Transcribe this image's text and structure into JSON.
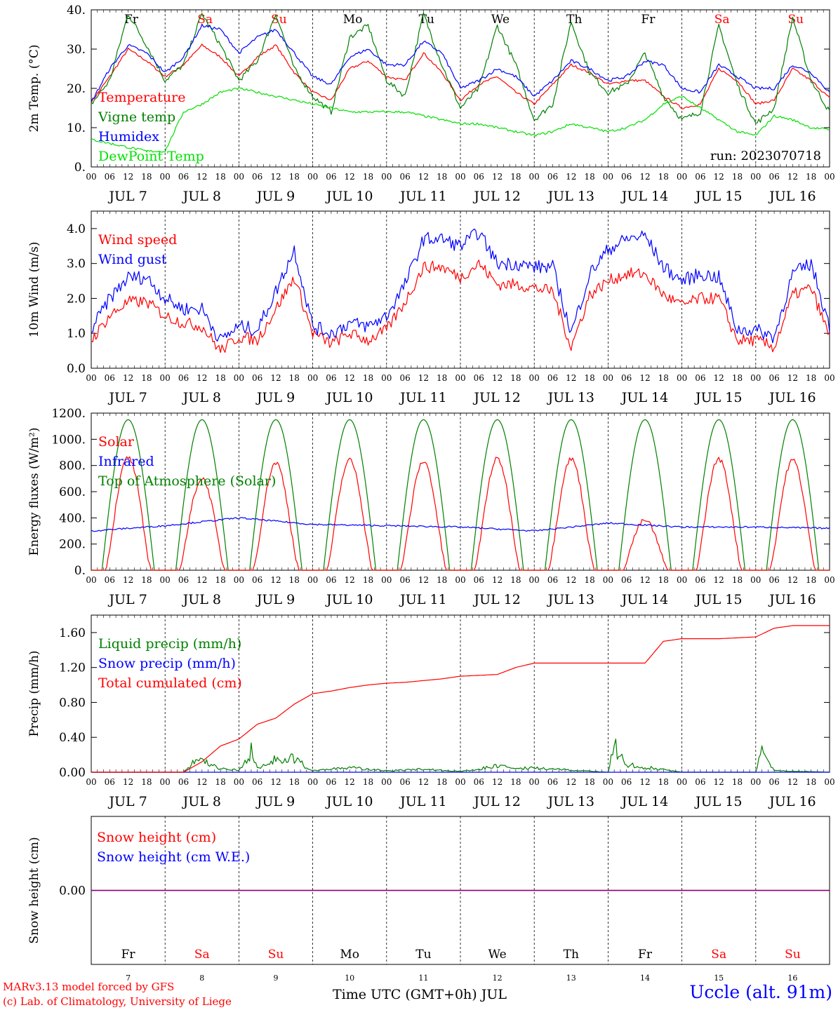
{
  "colors": {
    "red": "#ff0000",
    "blue": "#0000ff",
    "green": "#008000",
    "lightgreen": "#00e000",
    "purple": "#800080"
  },
  "days": {
    "names": [
      "Fr",
      "Sa",
      "Su",
      "Mo",
      "Tu",
      "We",
      "Th",
      "Fr",
      "Sa",
      "Su"
    ],
    "weekend": [
      false,
      true,
      true,
      false,
      false,
      false,
      false,
      false,
      true,
      true
    ],
    "dates": [
      "JUL  7",
      "JUL  8",
      "JUL  9",
      "JUL 10",
      "JUL 11",
      "JUL 12",
      "JUL 13",
      "JUL 14",
      "JUL 15",
      "JUL 16"
    ],
    "numbers": [
      "7",
      "8",
      "9",
      "10",
      "11",
      "12",
      "13",
      "14",
      "15",
      "16"
    ],
    "hours": [
      "00",
      "06",
      "12",
      "18"
    ],
    "final_hour": "00"
  },
  "footer": {
    "model": "MARv3.13 model forced by GFS",
    "lab": "(c) Lab. of Climatology, University of Liege",
    "station": "Uccle (alt. 91m)",
    "time_axis": "Time UTC (GMT+0h) JUL"
  },
  "chart_data": [
    {
      "type": "line",
      "ylabel": "2m Temp. (°C)",
      "ylim": [
        0,
        40
      ],
      "yticks": [
        "0.",
        "10.",
        "20.",
        "30.",
        "40."
      ],
      "run_label": "run: 2023070718",
      "x_unit": "hours since Jul 7 00 UTC",
      "series": [
        {
          "name": "Temperature",
          "color": "red",
          "x": [
            0,
            6,
            12,
            18,
            24,
            30,
            36,
            42,
            48,
            54,
            60,
            66,
            72,
            78,
            84,
            90,
            96,
            102,
            108,
            114,
            120,
            126,
            132,
            138,
            144,
            150,
            156,
            162,
            168,
            174,
            180,
            186,
            192,
            198,
            204,
            210,
            216,
            222,
            228,
            234,
            240
          ],
          "y": [
            16.5,
            23,
            30,
            27,
            23,
            26,
            31,
            28,
            23,
            28,
            31,
            24,
            19,
            17,
            25,
            27,
            23,
            22,
            29,
            24,
            17,
            21,
            23,
            19,
            16,
            21,
            26,
            24,
            21,
            22,
            22,
            18,
            15,
            16,
            25,
            22,
            16,
            17,
            25,
            22,
            17.5
          ]
        },
        {
          "name": "Vigne temp",
          "color": "green",
          "x": [
            0,
            6,
            12,
            18,
            24,
            30,
            36,
            42,
            48,
            54,
            60,
            66,
            72,
            78,
            84,
            90,
            96,
            102,
            108,
            114,
            120,
            126,
            132,
            138,
            144,
            150,
            156,
            162,
            168,
            174,
            180,
            186,
            192,
            198,
            204,
            210,
            216,
            222,
            228,
            234,
            240
          ],
          "y": [
            16,
            22,
            39,
            31,
            22,
            26,
            39,
            31,
            22,
            27,
            39,
            25,
            18,
            14,
            33,
            36,
            22,
            18,
            39,
            26,
            15,
            20,
            36,
            26,
            12,
            16,
            37,
            24,
            19,
            21,
            29,
            18,
            12,
            14,
            36,
            21,
            11,
            15,
            38,
            22,
            14
          ]
        },
        {
          "name": "Humidex",
          "color": "blue",
          "x": [
            0,
            6,
            12,
            18,
            24,
            30,
            36,
            42,
            48,
            54,
            60,
            66,
            72,
            78,
            84,
            90,
            96,
            102,
            108,
            114,
            120,
            126,
            132,
            138,
            144,
            150,
            156,
            162,
            168,
            174,
            180,
            186,
            192,
            198,
            204,
            210,
            216,
            222,
            228,
            234,
            240
          ],
          "y": [
            16.5,
            25,
            31,
            29,
            24,
            28,
            36,
            35,
            29,
            33,
            35,
            29,
            23,
            21,
            28,
            30,
            26,
            26,
            32,
            29,
            20,
            22,
            25,
            23,
            18,
            22,
            27,
            25,
            22,
            23,
            27,
            26,
            20,
            19,
            26,
            23,
            20,
            20,
            26,
            24,
            19
          ]
        },
        {
          "name": "DewPoint Temp",
          "color": "lightgreen",
          "x": [
            0,
            6,
            12,
            18,
            24,
            30,
            36,
            42,
            48,
            54,
            60,
            66,
            72,
            78,
            84,
            90,
            96,
            102,
            108,
            114,
            120,
            126,
            132,
            138,
            144,
            150,
            156,
            162,
            168,
            174,
            180,
            186,
            192,
            198,
            204,
            210,
            216,
            222,
            228,
            234,
            240
          ],
          "y": [
            7,
            6,
            5,
            4,
            4,
            14,
            16,
            19,
            20,
            19,
            18,
            17,
            16,
            15,
            14,
            14,
            14,
            14,
            13,
            12,
            11,
            11,
            10,
            9,
            8,
            9,
            11,
            10,
            9,
            10,
            12,
            16,
            18,
            15,
            12,
            9,
            8,
            13,
            12,
            10,
            9.5
          ]
        }
      ]
    },
    {
      "type": "line",
      "ylabel": "10m Wind (m/s)",
      "ylim": [
        0,
        4.5
      ],
      "yticks": [
        "0.0",
        "1.0",
        "2.0",
        "3.0",
        "4.0"
      ],
      "x_unit": "hours since Jul 7 00 UTC",
      "series": [
        {
          "name": "Wind speed",
          "color": "red",
          "x": [
            0,
            6,
            12,
            18,
            24,
            30,
            36,
            42,
            48,
            54,
            60,
            66,
            72,
            78,
            84,
            90,
            96,
            102,
            108,
            114,
            120,
            126,
            132,
            138,
            144,
            150,
            156,
            162,
            168,
            174,
            180,
            186,
            192,
            198,
            204,
            210,
            216,
            222,
            228,
            234,
            240
          ],
          "y": [
            0.8,
            1.5,
            1.9,
            1.9,
            1.5,
            1.3,
            1.2,
            0.5,
            0.9,
            0.8,
            1.7,
            2.6,
            1.0,
            0.7,
            1.0,
            0.8,
            1.1,
            1.9,
            2.9,
            2.9,
            2.6,
            3.0,
            2.4,
            2.4,
            2.3,
            2.2,
            0.6,
            2.1,
            2.5,
            2.7,
            2.7,
            2.1,
            1.8,
            2.0,
            2.0,
            0.8,
            0.8,
            0.6,
            2.1,
            2.3,
            0.9
          ]
        },
        {
          "name": "Wind gust",
          "color": "blue",
          "x": [
            0,
            6,
            12,
            18,
            24,
            30,
            36,
            42,
            48,
            54,
            60,
            66,
            72,
            78,
            84,
            90,
            96,
            102,
            108,
            114,
            120,
            126,
            132,
            138,
            144,
            150,
            156,
            162,
            168,
            174,
            180,
            186,
            192,
            198,
            204,
            210,
            216,
            222,
            228,
            234,
            240
          ],
          "y": [
            1.1,
            2.0,
            2.6,
            2.6,
            2.0,
            1.7,
            1.7,
            0.8,
            1.2,
            1.1,
            2.2,
            3.4,
            1.2,
            1.0,
            1.3,
            1.2,
            1.5,
            2.4,
            3.7,
            3.7,
            3.5,
            3.9,
            3.0,
            3.0,
            2.9,
            2.9,
            1.0,
            2.7,
            3.4,
            3.7,
            3.8,
            2.9,
            2.5,
            2.7,
            2.6,
            1.1,
            1.1,
            0.9,
            2.7,
            3.0,
            1.2
          ]
        }
      ]
    },
    {
      "type": "line",
      "ylabel": "Energy fluxes (W/m²)",
      "ylim": [
        0,
        1200
      ],
      "yticks": [
        "0.",
        "200.",
        "400.",
        "600.",
        "800.",
        "1000.",
        "1200."
      ],
      "x_unit": "hours since Jul 7 00 UTC",
      "solar_peaks": [
        860,
        700,
        820,
        840,
        830,
        850,
        850,
        380,
        850,
        840
      ],
      "toa_peak": 1150,
      "series": [
        {
          "name": "Solar",
          "color": "red"
        },
        {
          "name": "Infrared",
          "color": "blue",
          "x": [
            0,
            24,
            48,
            72,
            96,
            120,
            144,
            168,
            192,
            216,
            240
          ],
          "y": [
            300,
            340,
            400,
            350,
            340,
            330,
            300,
            360,
            330,
            330,
            320
          ]
        },
        {
          "name": "Top of Atmosphere (Solar)",
          "color": "green"
        }
      ]
    },
    {
      "type": "line",
      "ylabel": "Precip (mm/h)",
      "ylim": [
        0,
        1.8
      ],
      "yticks": [
        "0.00",
        "0.40",
        "0.80",
        "1.20",
        "1.60"
      ],
      "x_unit": "hours since Jul 7 00 UTC",
      "series": [
        {
          "name": "Liquid precip (mm/h)",
          "color": "green",
          "x": [
            0,
            30,
            33,
            36,
            42,
            48,
            52,
            54,
            60,
            66,
            72,
            84,
            96,
            108,
            120,
            132,
            168,
            170,
            174,
            192,
            216,
            218,
            222,
            240
          ],
          "y": [
            0,
            0,
            0.12,
            0.15,
            0.05,
            0.03,
            0.28,
            0.05,
            0.18,
            0.18,
            0.02,
            0.06,
            0.02,
            0.04,
            0.01,
            0.08,
            0,
            0.35,
            0.1,
            0,
            0,
            0.31,
            0.02,
            0
          ]
        },
        {
          "name": "Snow precip (mm/h)",
          "color": "blue",
          "x": [
            0,
            240
          ],
          "y": [
            0,
            0
          ]
        },
        {
          "name": "Total cumulated (cm)",
          "color": "red",
          "x": [
            0,
            30,
            36,
            42,
            48,
            54,
            60,
            66,
            72,
            78,
            84,
            90,
            96,
            102,
            108,
            114,
            120,
            126,
            132,
            138,
            144,
            150,
            156,
            162,
            168,
            174,
            180,
            186,
            192,
            198,
            204,
            210,
            216,
            222,
            228,
            234,
            240
          ],
          "y": [
            0,
            0,
            0.12,
            0.3,
            0.38,
            0.55,
            0.62,
            0.78,
            0.9,
            0.93,
            0.97,
            1.0,
            1.02,
            1.03,
            1.05,
            1.07,
            1.1,
            1.11,
            1.12,
            1.2,
            1.25,
            1.25,
            1.25,
            1.25,
            1.25,
            1.25,
            1.25,
            1.5,
            1.53,
            1.53,
            1.53,
            1.54,
            1.55,
            1.65,
            1.68,
            1.68,
            1.68
          ]
        }
      ]
    },
    {
      "type": "line",
      "ylabel": "Snow height (cm)",
      "ylim": [
        -1,
        1
      ],
      "yticks": [
        "0.00"
      ],
      "x_unit": "hours since Jul 7 00 UTC",
      "series": [
        {
          "name": "Snow height (cm)",
          "color": "red",
          "x": [
            0,
            240
          ],
          "y": [
            0,
            0
          ]
        },
        {
          "name": "Snow height (cm W.E.)",
          "color": "blue",
          "x": [
            0,
            240
          ],
          "y": [
            0,
            0
          ]
        }
      ]
    }
  ]
}
